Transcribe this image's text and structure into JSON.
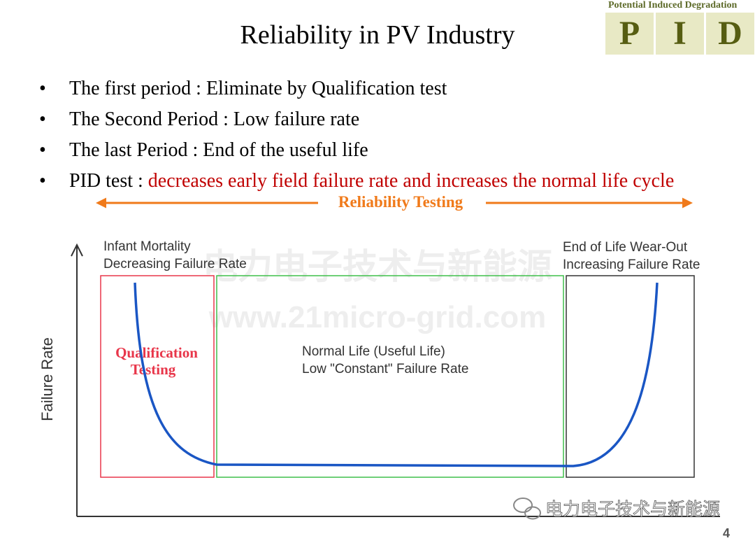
{
  "slide": {
    "title": "Reliability  in PV Industry",
    "page_number": "4"
  },
  "logo": {
    "caption": "Potential Induced Degradation",
    "letters": [
      "P",
      "I",
      "D"
    ]
  },
  "bullets": [
    {
      "symbol": "•",
      "text": "The first period : Eliminate by Qualification test",
      "highlight": ""
    },
    {
      "symbol": "•",
      "text": "The Second Period : Low failure rate",
      "highlight": ""
    },
    {
      "symbol": "•",
      "text": "The last Period : End of the useful life",
      "highlight": ""
    },
    {
      "symbol": "•",
      "text": "PID test : ",
      "highlight": "decreases early field failure rate and increases the normal life cycle"
    }
  ],
  "diagram": {
    "banner": "Reliability Testing",
    "y_axis_label": "Failure Rate",
    "phases": [
      {
        "line1": "Infant Mortality",
        "line2": "Decreasing Failure Rate",
        "box_label_1": "Qualification",
        "box_label_2": "Testing",
        "color": "#e8364a"
      },
      {
        "line1": "Normal Life (Useful Life)",
        "line2": "Low \"Constant\" Failure Rate",
        "color": "#3fbf4a"
      },
      {
        "line1": "End of Life Wear-Out",
        "line2": "Increasing Failure Rate",
        "color": "#333333"
      }
    ],
    "curve_color": "#1a56c4",
    "arrow_color": "#f07a1a",
    "watermark_cn": "电力电子技术与新能源",
    "watermark_url": "www.21micro-grid.com",
    "wechat_watermark": "电力电子技术与新能源"
  }
}
